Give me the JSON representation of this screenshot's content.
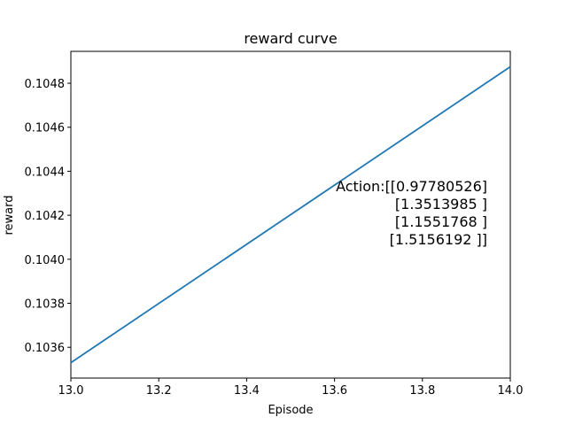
{
  "chart_data": {
    "type": "line",
    "title": "reward curve",
    "xlabel": "Episode",
    "ylabel": "reward",
    "xlim": [
      13.0,
      14.0
    ],
    "ylim": [
      0.10346,
      0.104945
    ],
    "xticks": [
      "13.0",
      "13.2",
      "13.4",
      "13.6",
      "13.8",
      "14.0"
    ],
    "yticks": [
      "0.1036",
      "0.1038",
      "0.1040",
      "0.1042",
      "0.1044",
      "0.1046",
      "0.1048"
    ],
    "grid": false,
    "series": [
      {
        "color": "#1f77b4",
        "x": [
          13.0,
          14.0
        ],
        "y": [
          0.10353,
          0.104875
        ]
      }
    ],
    "annotation": {
      "lines": [
        "Action:[[0.97780526]",
        "[1.3513985 ]",
        "[1.1551768 ]",
        "[1.5156192 ]]"
      ]
    }
  }
}
